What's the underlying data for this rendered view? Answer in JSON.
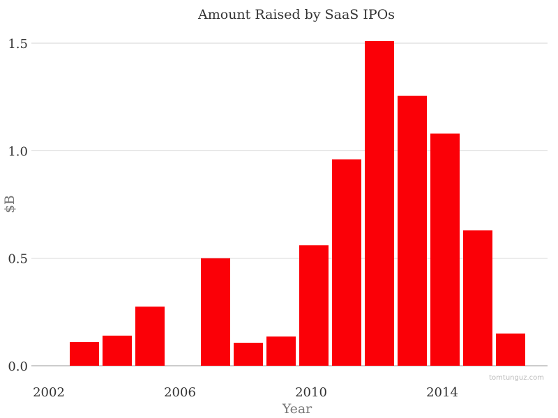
{
  "chart_data": {
    "type": "bar",
    "title": "Amount Raised by SaaS IPOs",
    "xlabel": "Year",
    "ylabel": "$B",
    "x": [
      2003,
      2004,
      2005,
      2006,
      2007,
      2008,
      2009,
      2010,
      2011,
      2012,
      2013,
      2014,
      2015,
      2016
    ],
    "values": [
      0.11,
      0.14,
      0.275,
      0,
      0.5,
      0.107,
      0.136,
      0.56,
      0.96,
      1.51,
      1.255,
      1.08,
      0.63,
      0.15
    ],
    "x_ticks": [
      "2002",
      "2006",
      "2010",
      "2014"
    ],
    "y_ticks": [
      "0.0",
      "0.5",
      "1.0",
      "1.5"
    ],
    "ylim": [
      0,
      1.5
    ],
    "grid": "horizontal",
    "bar_color": "#fb0007",
    "watermark": "tomtunguz.com"
  }
}
